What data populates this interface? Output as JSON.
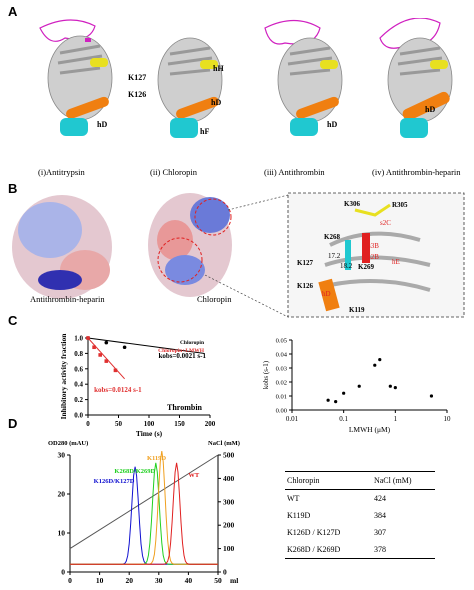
{
  "panels": {
    "A": "A",
    "B": "B",
    "C": "C",
    "D": "D"
  },
  "panelA": {
    "captions": [
      "(i)Antitrypsin",
      "(ii)  Chloropin",
      "(iii) Antithrombin",
      "(iv)  Antithrombin-heparin"
    ],
    "labels": {
      "hD": "hD",
      "hH": "hH",
      "K127": "K127",
      "K126": "K126",
      "hF": "hF"
    }
  },
  "panelB": {
    "captions": [
      "Antithrombin-heparin",
      "Chloropin"
    ],
    "zoom_labels": {
      "K306": "K306",
      "R305": "R305",
      "s2C": "s2C",
      "K268": "K268",
      "d1": "17.2",
      "d2": "18.2",
      "K269": "K269",
      "s3B": "s3B",
      "s2B": "s2B",
      "hE": "hE",
      "K127": "K127",
      "K126": "K126",
      "hD": "hD",
      "K119": "K119"
    }
  },
  "colors": {
    "black_series": "#000000",
    "red_series": "#e03030",
    "orange": "#f07f10",
    "yellow": "#e8e020",
    "cyan": "#20c8d0",
    "magenta": "#d020c0",
    "blue_trace": "#1010d0",
    "green_trace": "#20d020",
    "orange_trace": "#f0a020",
    "red_trace": "#e02020"
  },
  "chart_data": [
    {
      "type": "line",
      "title": "Thrombin",
      "xlabel": "Time (s)",
      "ylabel": "Inhibitory activity fraction",
      "xlim": [
        0,
        200
      ],
      "ylim": [
        0.0,
        1.0
      ],
      "xticks": [
        "0",
        "50",
        "100",
        "150",
        "200"
      ],
      "yticks": [
        "0.0",
        "0.2",
        "0.4",
        "0.6",
        "0.8",
        "1.0"
      ],
      "legend": [
        "Chloropin",
        "Chloropin+LMWH"
      ],
      "series": [
        {
          "name": "Chloropin",
          "color": "#000000",
          "x": [
            0,
            30,
            60
          ],
          "y": [
            1.0,
            0.94,
            0.88
          ],
          "fit": [
            [
              0,
              1.0
            ],
            [
              190,
              0.8
            ]
          ]
        },
        {
          "name": "Chloropin+LMWH",
          "color": "#e03030",
          "x": [
            0,
            10,
            20,
            30,
            45
          ],
          "y": [
            1.0,
            0.88,
            0.78,
            0.7,
            0.58
          ],
          "fit": [
            [
              0,
              1.0
            ],
            [
              60,
              0.47
            ]
          ]
        }
      ],
      "annotations": [
        {
          "text": "kobs=0.0021 s-1",
          "color": "#000000"
        },
        {
          "text": "kobs=0.0124 s-1",
          "color": "#e03030"
        }
      ]
    },
    {
      "type": "scatter",
      "xlabel": "LMWH (μM)",
      "ylabel": "kobs (s-1)",
      "xscale": "log",
      "xlim": [
        0.01,
        10
      ],
      "ylim": [
        0.0,
        0.05
      ],
      "xticks": [
        "0.01",
        "0.1",
        "1",
        "10"
      ],
      "yticks": [
        "0.00",
        "0.01",
        "0.02",
        "0.03",
        "0.04",
        "0.05"
      ],
      "x": [
        0.05,
        0.07,
        0.1,
        0.2,
        0.4,
        0.5,
        0.8,
        1.0,
        5.0
      ],
      "y": [
        0.007,
        0.006,
        0.012,
        0.017,
        0.032,
        0.036,
        0.017,
        0.016,
        0.01
      ]
    },
    {
      "type": "line",
      "xlabel": "ml",
      "ylabel_left": "OD280  (mAU)",
      "ylabel_right": "NaCl  (mM)",
      "xlim": [
        0,
        50
      ],
      "ylim_left": [
        0,
        30
      ],
      "ylim_right": [
        0,
        500
      ],
      "xticks": [
        "0",
        "10",
        "20",
        "30",
        "40",
        "50"
      ],
      "yticks_left": [
        "0",
        "10",
        "20",
        "30"
      ],
      "yticks_right": [
        "0",
        "100",
        "200",
        "300",
        "400",
        "500"
      ],
      "series": [
        {
          "name": "K126D/K127D",
          "color": "#1010d0"
        },
        {
          "name": "K268D/K269D",
          "color": "#20d020"
        },
        {
          "name": "K119D",
          "color": "#f0a020"
        },
        {
          "name": "WT",
          "color": "#e02020"
        }
      ]
    }
  ],
  "table": {
    "headers": [
      "Chloropin",
      "NaCl (mM)"
    ],
    "rows": [
      [
        "WT",
        "424"
      ],
      [
        "K119D",
        "384"
      ],
      [
        "K126D / K127D",
        "307"
      ],
      [
        "K268D / K269D",
        "378"
      ]
    ]
  }
}
